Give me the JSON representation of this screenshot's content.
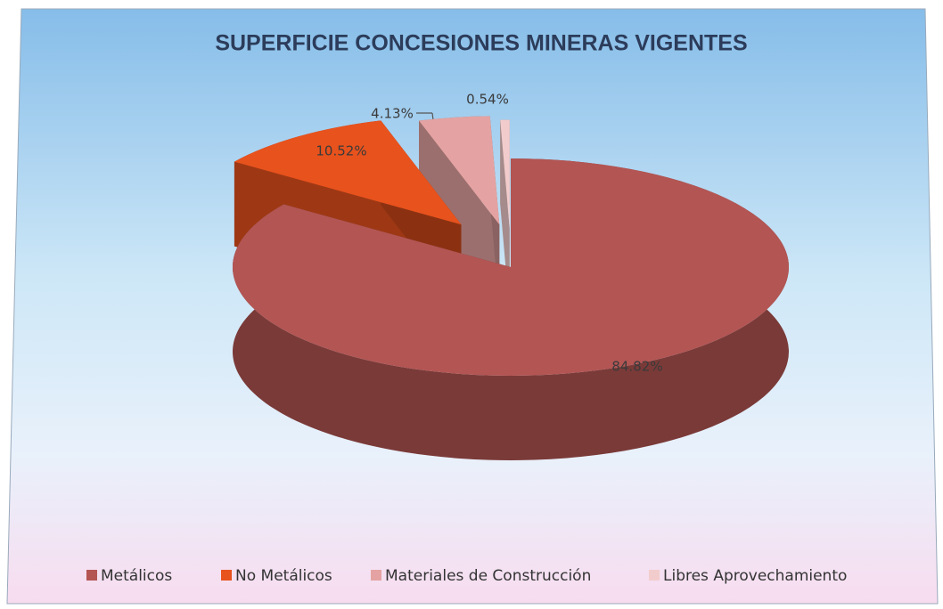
{
  "chart_data": {
    "type": "pie",
    "title": "SUPERFICIE CONCESIONES MINERAS VIGENTES",
    "categories": [
      "Metálicos",
      "No Metálicos",
      "Materiales de Construcción",
      "Libres Aprovechamiento"
    ],
    "values": [
      84.82,
      10.52,
      4.13,
      0.54
    ],
    "value_labels": [
      "84.82%",
      "10.52%",
      "4.13%",
      "0.54%"
    ],
    "colors": [
      "#b35553",
      "#e8521d",
      "#e4a3a2",
      "#f2cccc"
    ],
    "legend": "bottom"
  }
}
